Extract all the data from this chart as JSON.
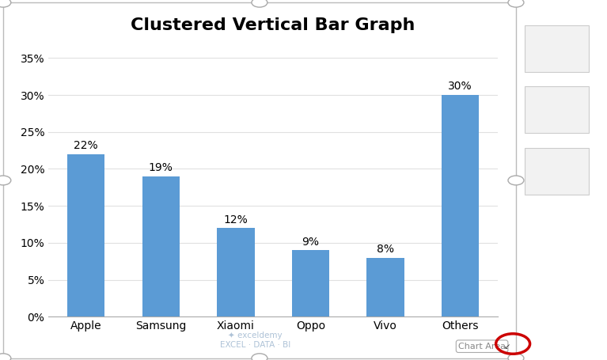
{
  "title": "Clustered Vertical Bar Graph",
  "categories": [
    "Apple",
    "Samsung",
    "Xiaomi",
    "Oppo",
    "Vivo",
    "Others"
  ],
  "values": [
    0.22,
    0.19,
    0.12,
    0.09,
    0.08,
    0.3
  ],
  "labels": [
    "22%",
    "19%",
    "12%",
    "9%",
    "8%",
    "30%"
  ],
  "bar_color": "#5B9BD5",
  "ylim": [
    0,
    0.37
  ],
  "yticks": [
    0.0,
    0.05,
    0.1,
    0.15,
    0.2,
    0.25,
    0.3,
    0.35
  ],
  "ytick_labels": [
    "0%",
    "5%",
    "10%",
    "15%",
    "20%",
    "25%",
    "30%",
    "35%"
  ],
  "title_fontsize": 16,
  "label_fontsize": 10,
  "tick_fontsize": 10,
  "background_color": "#FFFFFF",
  "grid_color": "#E0E0E0",
  "chart_border_color": "#AAAAAA",
  "handle_color": "#AAAAAA",
  "icon_box_color": "#F2F2F2",
  "icon_border_color": "#CCCCCC",
  "plus_color": "#2E7D2E",
  "brush_color": "#5B9BD5",
  "filter_color": "#555555",
  "exceldemy_color": "#A0B8D0",
  "chart_area_text_color": "#888888",
  "red_circle_color": "#CC0000",
  "bar_width": 0.5
}
